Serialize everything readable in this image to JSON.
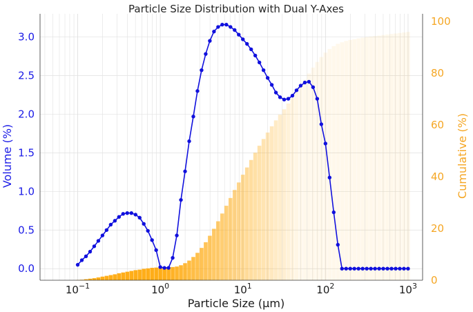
{
  "chart_data": {
    "type": "line",
    "title": "Particle Size Distribution with Dual Y-Axes",
    "xlabel": "Particle Size (µm)",
    "ylabel_left": "Volume (%)",
    "ylabel_right": "Cumulative (%)",
    "x_scale": "log",
    "xlim": [
      0.035,
      1500
    ],
    "ylim_left": [
      -0.15,
      3.3
    ],
    "ylim_right": [
      0,
      103
    ],
    "grid": true,
    "x_ticks": [
      {
        "base": "10",
        "exp": "−1"
      },
      {
        "base": "10",
        "exp": "0"
      },
      {
        "base": "10",
        "exp": "1"
      },
      {
        "base": "10",
        "exp": "2"
      },
      {
        "base": "10",
        "exp": "3"
      }
    ],
    "y_ticks_left": [
      "0.0",
      "0.5",
      "1.0",
      "1.5",
      "2.0",
      "2.5",
      "3.0"
    ],
    "y_ticks_right": [
      "0",
      "20",
      "40",
      "60",
      "80",
      "100"
    ],
    "colors": {
      "line": "#1010dd",
      "bars": "#ffa500",
      "left_axis": "#1a1ae6",
      "right_axis": "#f5a623",
      "grid": "#e0e0e0"
    },
    "series": [
      {
        "axis": "left",
        "kind": "line",
        "x_log10": [
          -1.0,
          -0.95,
          -0.9,
          -0.85,
          -0.8,
          -0.75,
          -0.7,
          -0.65,
          -0.6,
          -0.55,
          -0.5,
          -0.45,
          -0.4,
          -0.35,
          -0.3,
          -0.25,
          -0.2,
          -0.15,
          -0.1,
          -0.05,
          0.0,
          0.05,
          0.1,
          0.15,
          0.2,
          0.25,
          0.3,
          0.35,
          0.4,
          0.45,
          0.5,
          0.55,
          0.6,
          0.65,
          0.7,
          0.75,
          0.8,
          0.85,
          0.9,
          0.95,
          1.0,
          1.05,
          1.1,
          1.15,
          1.2,
          1.25,
          1.3,
          1.35,
          1.4,
          1.45,
          1.5,
          1.55,
          1.6,
          1.65,
          1.7,
          1.75,
          1.8,
          1.85,
          1.9,
          1.95,
          2.0,
          2.05,
          2.1,
          2.15,
          2.2,
          2.25,
          2.3,
          2.35,
          2.4,
          2.45,
          2.5,
          2.55,
          2.6,
          2.65,
          2.7,
          2.75,
          2.8,
          2.85,
          2.9,
          2.95,
          3.0
        ],
        "values": [
          0.05,
          0.11,
          0.16,
          0.22,
          0.29,
          0.36,
          0.43,
          0.5,
          0.57,
          0.62,
          0.67,
          0.71,
          0.72,
          0.72,
          0.7,
          0.66,
          0.58,
          0.49,
          0.37,
          0.24,
          0.02,
          0.01,
          0.01,
          0.14,
          0.43,
          0.89,
          1.26,
          1.65,
          1.97,
          2.3,
          2.57,
          2.78,
          2.95,
          3.07,
          3.13,
          3.16,
          3.16,
          3.13,
          3.09,
          3.03,
          2.97,
          2.91,
          2.84,
          2.76,
          2.67,
          2.57,
          2.47,
          2.38,
          2.28,
          2.22,
          2.19,
          2.2,
          2.24,
          2.31,
          2.37,
          2.41,
          2.42,
          2.35,
          2.2,
          1.87,
          1.62,
          1.18,
          0.73,
          0.31,
          0.0,
          0.0,
          0.0,
          0.0,
          0.0,
          0.0,
          0.0,
          0.0,
          0.0,
          0.0,
          0.0,
          0.0,
          0.0,
          0.0,
          0.0,
          0.0,
          0.0
        ]
      },
      {
        "axis": "right",
        "kind": "bar",
        "x_log10": [
          -1.0,
          -0.95,
          -0.9,
          -0.85,
          -0.8,
          -0.75,
          -0.7,
          -0.65,
          -0.6,
          -0.55,
          -0.5,
          -0.45,
          -0.4,
          -0.35,
          -0.3,
          -0.25,
          -0.2,
          -0.15,
          -0.1,
          -0.05,
          0.0,
          0.05,
          0.1,
          0.15,
          0.2,
          0.25,
          0.3,
          0.35,
          0.4,
          0.45,
          0.5,
          0.55,
          0.6,
          0.65,
          0.7,
          0.75,
          0.8,
          0.85,
          0.9,
          0.95,
          1.0,
          1.05,
          1.1,
          1.15,
          1.2,
          1.25,
          1.3,
          1.35,
          1.4,
          1.45,
          1.5,
          1.55,
          1.6,
          1.65,
          1.7,
          1.75,
          1.8,
          1.85,
          1.9,
          1.95,
          2.0,
          2.05,
          2.1,
          2.15,
          2.2,
          2.25,
          2.3,
          2.35,
          2.4,
          2.45,
          2.5,
          2.55,
          2.6,
          2.65,
          2.7,
          2.75,
          2.8,
          2.85,
          2.9,
          2.95,
          3.0
        ],
        "values": [
          0.1,
          0.2,
          0.4,
          0.6,
          0.8,
          1.1,
          1.4,
          1.7,
          2.0,
          2.3,
          2.7,
          3.0,
          3.3,
          3.6,
          3.9,
          4.1,
          4.4,
          4.6,
          4.8,
          4.9,
          5.0,
          5.0,
          5.0,
          5.1,
          5.3,
          5.8,
          6.6,
          7.6,
          9.0,
          10.6,
          12.5,
          14.7,
          17.2,
          19.9,
          22.8,
          25.8,
          28.8,
          31.8,
          34.9,
          37.8,
          40.8,
          43.6,
          46.5,
          49.3,
          52.0,
          54.6,
          57.1,
          59.5,
          61.8,
          64.0,
          66.1,
          68.3,
          70.5,
          72.8,
          75.1,
          77.5,
          79.9,
          82.2,
          84.4,
          86.3,
          88.0,
          89.4,
          90.5,
          91.4,
          92.0,
          92.5,
          92.9,
          93.2,
          93.5,
          93.8,
          94.0,
          94.2,
          94.4,
          94.6,
          94.8,
          95.0,
          95.2,
          95.4,
          95.6,
          95.8,
          96.0
        ]
      }
    ]
  }
}
